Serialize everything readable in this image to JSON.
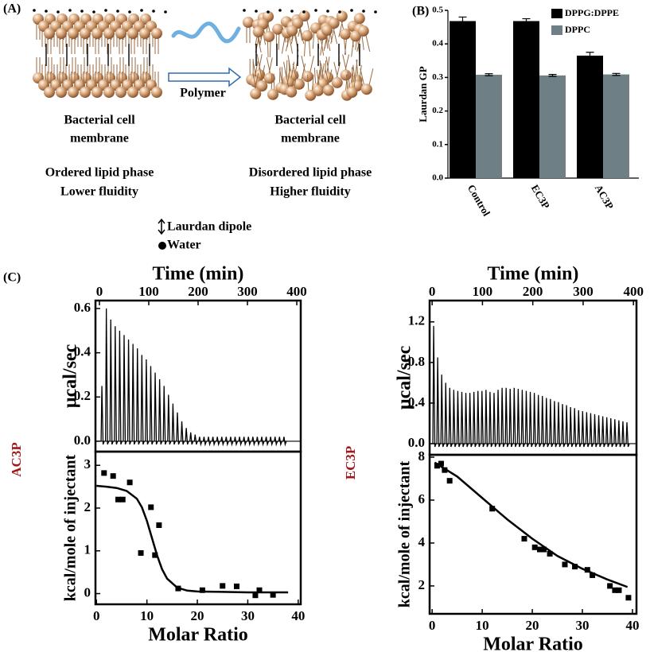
{
  "panel_a": {
    "label": "(A)",
    "arrow_label": "Polymer",
    "left_title": [
      "Bacterial cell",
      "membrane"
    ],
    "left_phase": [
      "Ordered lipid phase",
      "Lower fluidity"
    ],
    "right_title": [
      "Bacterial cell",
      "membrane"
    ],
    "right_phase": [
      "Disordered lipid phase",
      "Higher fluidity"
    ],
    "legend": [
      "Laurdan dipole",
      "Water"
    ]
  },
  "panel_c_label": "(C)",
  "chart_data": [
    {
      "type": "bar",
      "panel_label": "(B)",
      "y_label": "Laurdan GP",
      "categories": [
        "Control",
        "EC3P",
        "AC3P"
      ],
      "series": [
        {
          "name": "DPPG:DPPE",
          "color": "#000000",
          "values": [
            0.468,
            0.468,
            0.365
          ],
          "errors": [
            0.012,
            0.007,
            0.01
          ]
        },
        {
          "name": "DPPC",
          "color": "#6e7f86",
          "values": [
            0.308,
            0.306,
            0.309
          ],
          "errors": [
            0.003,
            0.003,
            0.003
          ]
        }
      ],
      "ylim": [
        0,
        0.5
      ],
      "yticks": [
        {
          "value": 0,
          "label": "0.0"
        },
        0.1,
        0.2,
        0.3,
        0.4,
        0.5
      ],
      "legend": "upper right"
    },
    {
      "type": "spike",
      "sample": "AC3P",
      "sample_color": "#a01818",
      "x_label": "Time (min)",
      "y_label": "µcal/sec",
      "xaxis_position": "top",
      "x": [
        5,
        14,
        23,
        32,
        41,
        50,
        59,
        68,
        77,
        86,
        95,
        104,
        113,
        122,
        131,
        140,
        149,
        158,
        167,
        176,
        185,
        194,
        203,
        212,
        221,
        230,
        239,
        248,
        257,
        266,
        275,
        284,
        293,
        302,
        311,
        320,
        329,
        338,
        347,
        356,
        365,
        374
      ],
      "values": [
        0.25,
        0.6,
        0.55,
        0.52,
        0.5,
        0.48,
        0.46,
        0.44,
        0.42,
        0.39,
        0.37,
        0.34,
        0.31,
        0.28,
        0.25,
        0.21,
        0.17,
        0.13,
        0.09,
        0.06,
        0.04,
        0.03,
        0.02,
        0.02,
        0.02,
        0.02,
        0.02,
        0.02,
        0.02,
        0.02,
        0.02,
        0.02,
        0.02,
        0.02,
        0.02,
        0.02,
        0.02,
        0.02,
        0.02,
        0.02,
        0.02,
        0.02
      ],
      "color": "#000000",
      "xlim": [
        -8,
        408
      ],
      "xticks": [
        0,
        100,
        200,
        300,
        400
      ],
      "ylim": [
        -0.047,
        0.636
      ],
      "yticks": [
        {
          "value": 0,
          "label": "0.0"
        },
        0.2,
        0.4,
        0.6
      ]
    },
    {
      "type": "scatter",
      "x_label": "Molar Ratio",
      "y_label": "kcal/mole of injectant",
      "series": [
        {
          "mode": "markers",
          "color": "#000000",
          "x": [
            1.5,
            3.3,
            4.3,
            5.2,
            6.6,
            8.8,
            10.8,
            11.6,
            12.4,
            16.2,
            21,
            25,
            27.8,
            31.5,
            32.3,
            35
          ],
          "values": [
            2.82,
            2.75,
            2.2,
            2.2,
            2.6,
            0.95,
            2.02,
            0.9,
            1.6,
            0.12,
            0.08,
            0.18,
            0.17,
            -0.04,
            0.08,
            -0.03
          ]
        },
        {
          "mode": "line",
          "color": "#000000",
          "x": [
            0,
            2,
            4,
            6,
            8,
            9,
            10,
            11,
            12,
            13,
            14,
            16,
            18,
            20,
            25,
            30,
            35,
            38
          ],
          "values": [
            2.52,
            2.5,
            2.47,
            2.4,
            2.22,
            2.02,
            1.7,
            1.3,
            0.9,
            0.57,
            0.35,
            0.14,
            0.07,
            0.05,
            0.04,
            0.03,
            0.03,
            0.03
          ]
        }
      ],
      "xlim": [
        -0.2,
        40.5
      ],
      "xticks": [
        0,
        10,
        20,
        30,
        40
      ],
      "ylim": [
        -0.25,
        3.32
      ],
      "yticks": [
        0,
        1,
        2,
        3
      ]
    },
    {
      "type": "spike",
      "sample": "EC3P",
      "sample_color": "#a01818",
      "x_label": "Time (min)",
      "y_label": "µcal/sec",
      "xaxis_position": "top",
      "x": [
        3,
        11,
        19,
        27,
        35,
        43,
        51,
        59,
        67,
        75,
        83,
        91,
        99,
        107,
        115,
        123,
        131,
        139,
        147,
        155,
        163,
        171,
        179,
        187,
        195,
        203,
        211,
        219,
        227,
        235,
        243,
        251,
        259,
        267,
        275,
        283,
        291,
        299,
        307,
        315,
        323,
        331,
        339,
        347,
        355,
        363,
        371,
        379,
        387
      ],
      "values": [
        1.16,
        0.85,
        0.68,
        0.6,
        0.55,
        0.53,
        0.52,
        0.51,
        0.5,
        0.5,
        0.51,
        0.52,
        0.52,
        0.53,
        0.51,
        0.5,
        0.53,
        0.55,
        0.55,
        0.54,
        0.55,
        0.54,
        0.53,
        0.52,
        0.51,
        0.5,
        0.48,
        0.47,
        0.45,
        0.44,
        0.42,
        0.41,
        0.39,
        0.38,
        0.36,
        0.35,
        0.33,
        0.32,
        0.31,
        0.3,
        0.29,
        0.28,
        0.27,
        0.26,
        0.25,
        0.24,
        0.23,
        0.22,
        0.21
      ],
      "color": "#000000",
      "xlim": [
        -5,
        406
      ],
      "xticks": [
        0,
        100,
        200,
        300,
        400
      ],
      "ylim": [
        -0.11,
        1.41
      ],
      "yticks": [
        {
          "value": 0,
          "label": "0.0"
        },
        0.4,
        0.8,
        1.2
      ]
    },
    {
      "type": "scatter",
      "x_label": "Molar Ratio",
      "y_label": "kcal/mole of injectant",
      "series": [
        {
          "mode": "markers",
          "color": "#000000",
          "x": [
            1,
            1.8,
            2.5,
            3.5,
            12,
            18.4,
            20.5,
            21.5,
            22.3,
            23.5,
            26.5,
            28.5,
            31,
            32,
            35.5,
            36.5,
            37.3,
            39.2
          ],
          "values": [
            7.6,
            7.7,
            7.4,
            6.9,
            5.6,
            4.2,
            3.8,
            3.7,
            3.7,
            3.5,
            3.0,
            2.9,
            2.75,
            2.5,
            2.0,
            1.8,
            1.8,
            1.45
          ]
        },
        {
          "mode": "line",
          "color": "#000000",
          "x": [
            0.5,
            5,
            10,
            15,
            20,
            25,
            30,
            35,
            39
          ],
          "values": [
            7.75,
            7.1,
            6.1,
            5.1,
            4.2,
            3.4,
            2.8,
            2.3,
            1.95
          ]
        }
      ],
      "xlim": [
        -0.5,
        40.8
      ],
      "xticks": [
        0,
        10,
        20,
        30,
        40
      ],
      "ylim": [
        0.7,
        8.11
      ],
      "yticks": [
        2,
        4,
        6,
        8
      ]
    }
  ]
}
